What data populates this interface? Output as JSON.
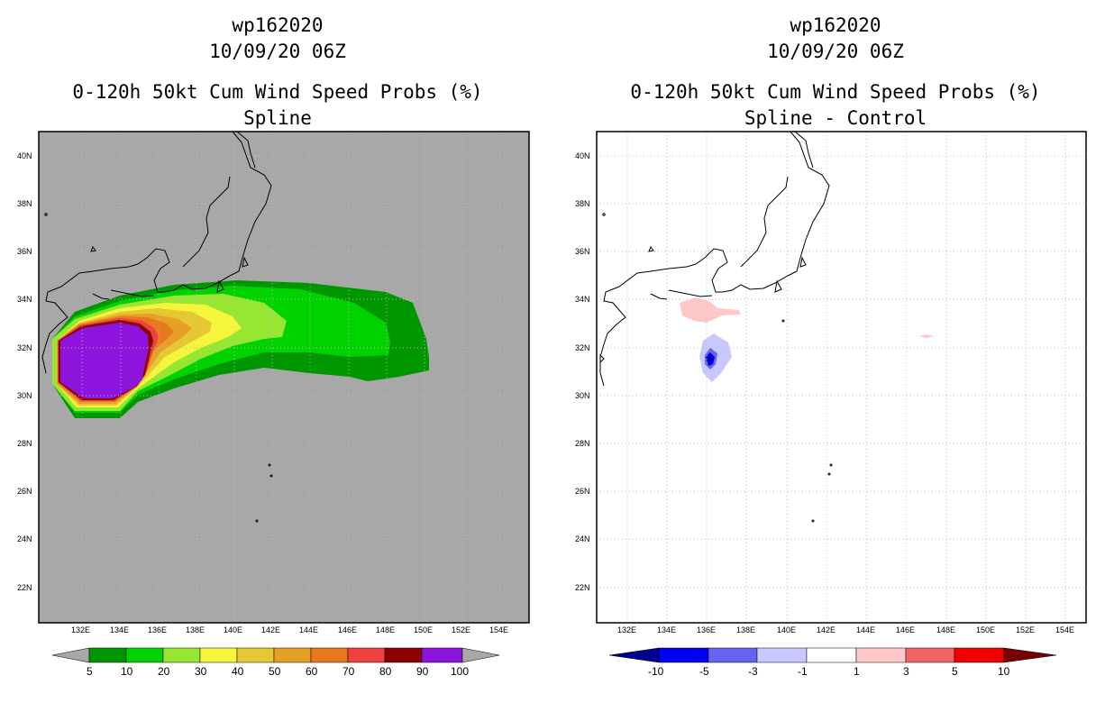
{
  "left": {
    "storm_id": "wp162020",
    "datetime": "10/09/20 06Z",
    "product": "0-120h 50kt Cum Wind Speed Probs (%)",
    "subtitle": "Spline"
  },
  "right": {
    "storm_id": "wp162020",
    "datetime": "10/09/20 06Z",
    "product": "0-120h 50kt Cum Wind Speed Probs (%)",
    "subtitle": "Spline - Control"
  },
  "lon_labels": [
    "132E",
    "134E",
    "136E",
    "138E",
    "140E",
    "142E",
    "144E",
    "146E",
    "148E",
    "150E",
    "152E",
    "154E"
  ],
  "lat_labels": [
    "40N",
    "38N",
    "36N",
    "34N",
    "32N",
    "30N",
    "28N",
    "26N",
    "24N",
    "22N"
  ],
  "left_colorbar": {
    "labels": [
      "5",
      "10",
      "20",
      "30",
      "40",
      "50",
      "60",
      "70",
      "80",
      "90",
      "100"
    ],
    "colors": [
      "#a8a8a8",
      "#009600",
      "#00d200",
      "#96e632",
      "#f5f53c",
      "#e6c832",
      "#e6a028",
      "#e6781e",
      "#f04040",
      "#8c0000",
      "#8c14dc",
      "#a8a8a8"
    ]
  },
  "right_colorbar": {
    "labels": [
      "-10",
      "-5",
      "-3",
      "-1",
      "1",
      "3",
      "5",
      "10"
    ],
    "colors": [
      "#00008c",
      "#0000f0",
      "#6464f0",
      "#c8c8ff",
      "#ffffff",
      "#ffc8c8",
      "#f06464",
      "#f00000",
      "#780000"
    ]
  },
  "colors": {
    "land_bg": "#a8a8a8",
    "grid": "#bbbbbb"
  }
}
